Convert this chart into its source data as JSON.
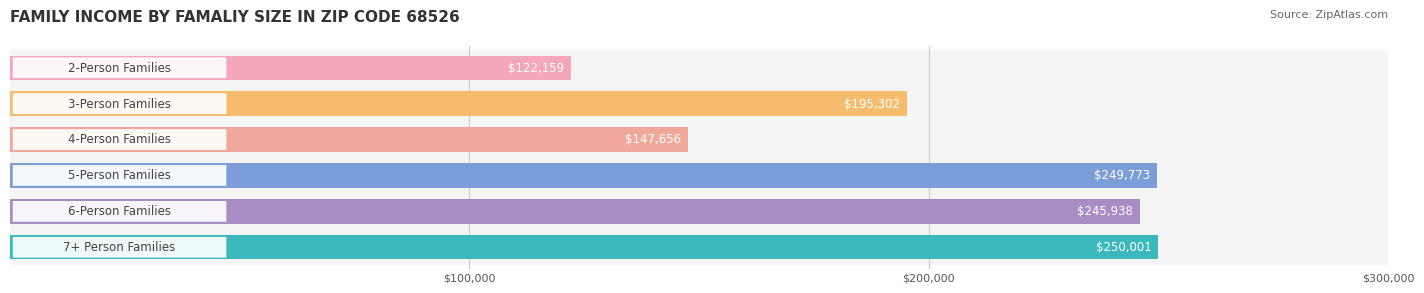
{
  "title": "FAMILY INCOME BY FAMALIY SIZE IN ZIP CODE 68526",
  "source": "Source: ZipAtlas.com",
  "categories": [
    "2-Person Families",
    "3-Person Families",
    "4-Person Families",
    "5-Person Families",
    "6-Person Families",
    "7+ Person Families"
  ],
  "values": [
    122159,
    195302,
    147656,
    249773,
    245938,
    250001
  ],
  "bar_colors": [
    "#f4a7b9",
    "#f5bc6e",
    "#f0a89a",
    "#7b9ed9",
    "#a98cc4",
    "#3ab8bc"
  ],
  "label_colors": [
    "#555555",
    "#555555",
    "#555555",
    "#ffffff",
    "#ffffff",
    "#ffffff"
  ],
  "bar_bg_color": "#f0f0f0",
  "value_labels": [
    "$122,159",
    "$195,302",
    "$147,656",
    "$249,773",
    "$245,938",
    "$250,001"
  ],
  "xlim": [
    0,
    300000
  ],
  "xticks": [
    100000,
    200000,
    300000
  ],
  "xticklabels": [
    "$100,000",
    "$200,000",
    "$300,000"
  ],
  "figsize": [
    14.06,
    3.05
  ],
  "background_color": "#ffffff",
  "bar_height": 0.68,
  "row_bg_color": "#f5f5f5",
  "title_fontsize": 11,
  "source_fontsize": 8,
  "label_fontsize": 8.5,
  "value_fontsize": 8.5,
  "tick_fontsize": 8
}
